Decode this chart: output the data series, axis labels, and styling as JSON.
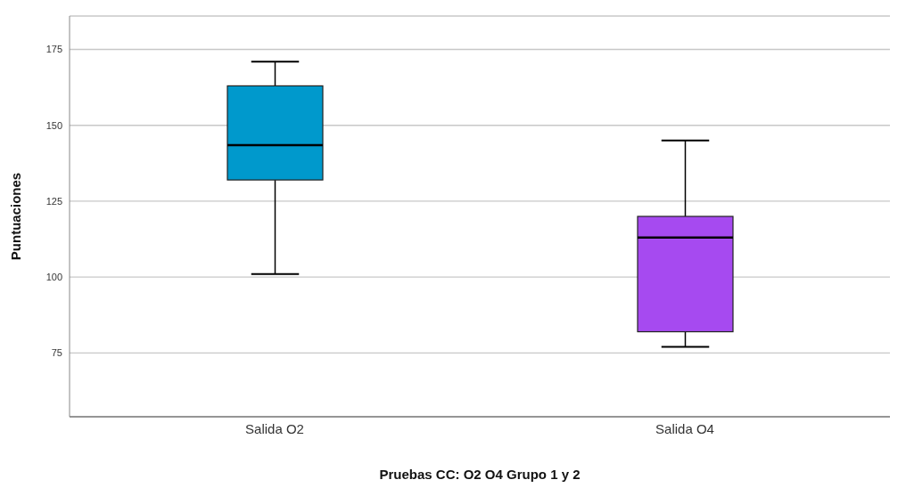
{
  "chart_data": {
    "type": "box",
    "xlabel": "Pruebas CC: O2 O4 Grupo 1 y 2",
    "ylabel": "Puntuaciones",
    "categories": [
      "Salida O2",
      "Salida O4"
    ],
    "boxes": [
      {
        "low": 101,
        "q1": 132,
        "median": 143.5,
        "q3": 163,
        "high": 171
      },
      {
        "low": 77,
        "q1": 82,
        "median": 113,
        "q3": 120,
        "high": 145
      }
    ],
    "colors": [
      "#0099cc",
      "#a64af0"
    ],
    "ylim": [
      54,
      186
    ],
    "yticks": [
      75,
      100,
      125,
      150,
      175
    ],
    "grid": "y",
    "legend": false
  }
}
